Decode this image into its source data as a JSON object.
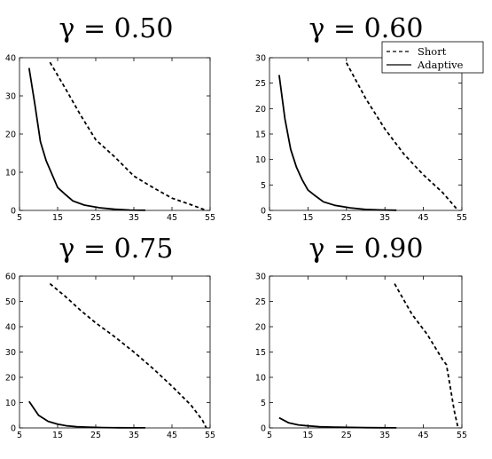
{
  "chart_data": [
    {
      "type": "line",
      "title": "γ = 0.50",
      "xlim": [
        5,
        55
      ],
      "ylim": [
        0,
        40
      ],
      "xticks": [
        5,
        15,
        25,
        35,
        45,
        55
      ],
      "yticks": [
        0,
        10,
        20,
        30,
        40
      ],
      "grid": false,
      "series": [
        {
          "name": "Short",
          "style": "dashed",
          "x": [
            13.0,
            17.0,
            21.0,
            25.0,
            30.0,
            35.0,
            40.0,
            45.0,
            50.0,
            54.0
          ],
          "y": [
            38.8,
            32.0,
            25.0,
            18.5,
            14.0,
            9.0,
            6.0,
            3.2,
            1.5,
            0.0
          ]
        },
        {
          "name": "Adaptive",
          "style": "solid",
          "x": [
            7.5,
            9.0,
            10.5,
            12.0,
            13.5,
            15.0,
            17.0,
            19.0,
            22.0,
            26.0,
            30.0,
            34.0,
            38.0
          ],
          "y": [
            37.3,
            28.0,
            18.0,
            13.0,
            9.5,
            6.0,
            4.2,
            2.5,
            1.4,
            0.7,
            0.3,
            0.1,
            0.05
          ]
        }
      ]
    },
    {
      "type": "line",
      "title": "γ = 0.60",
      "xlim": [
        5,
        55
      ],
      "ylim": [
        0,
        30
      ],
      "xticks": [
        5,
        15,
        25,
        35,
        45,
        55
      ],
      "yticks": [
        0,
        5,
        10,
        15,
        20,
        25,
        30
      ],
      "grid": false,
      "legend": {
        "position": "top-right",
        "entries": [
          "Short",
          "Adaptive"
        ]
      },
      "series": [
        {
          "name": "Short",
          "style": "dashed",
          "x": [
            25.0,
            30.0,
            35.0,
            40.0,
            45.0,
            50.0,
            54.0
          ],
          "y": [
            29.0,
            22.0,
            16.0,
            11.0,
            7.0,
            3.5,
            0.0
          ]
        },
        {
          "name": "Adaptive",
          "style": "solid",
          "x": [
            7.5,
            9.0,
            10.5,
            12.0,
            13.5,
            15.0,
            17.0,
            19.0,
            22.0,
            26.0,
            30.0,
            34.0,
            38.0
          ],
          "y": [
            26.6,
            18.0,
            12.0,
            8.5,
            6.0,
            4.0,
            2.8,
            1.7,
            1.0,
            0.5,
            0.2,
            0.08,
            0.03
          ]
        }
      ]
    },
    {
      "type": "line",
      "title": "γ = 0.75",
      "xlim": [
        5,
        55
      ],
      "ylim": [
        0,
        60
      ],
      "xticks": [
        5,
        15,
        25,
        35,
        45,
        55
      ],
      "yticks": [
        0,
        10,
        20,
        30,
        40,
        50,
        60
      ],
      "grid": false,
      "series": [
        {
          "name": "Short",
          "style": "dashed",
          "x": [
            13.0,
            17.0,
            21.0,
            25.0,
            30.0,
            35.0,
            40.0,
            45.0,
            50.0,
            53.0,
            54.0
          ],
          "y": [
            57.0,
            52.0,
            46.5,
            41.5,
            36.0,
            30.0,
            23.5,
            16.5,
            9.0,
            3.0,
            0.0
          ]
        },
        {
          "name": "Adaptive",
          "style": "solid",
          "x": [
            7.5,
            10.0,
            12.5,
            15.0,
            17.5,
            20.0,
            23.0,
            27.0,
            31.0,
            35.0,
            38.0
          ],
          "y": [
            10.5,
            5.0,
            2.6,
            1.5,
            0.8,
            0.5,
            0.3,
            0.15,
            0.08,
            0.04,
            0.02
          ]
        }
      ]
    },
    {
      "type": "line",
      "title": "γ = 0.90",
      "xlim": [
        5,
        55
      ],
      "ylim": [
        0,
        30
      ],
      "xticks": [
        5,
        15,
        25,
        35,
        45,
        55
      ],
      "yticks": [
        0,
        5,
        10,
        15,
        20,
        25,
        30
      ],
      "grid": false,
      "series": [
        {
          "name": "Short",
          "style": "dashed",
          "x": [
            37.5,
            42.0,
            46.0,
            50.0,
            51.0,
            52.0,
            53.0,
            54.0
          ],
          "y": [
            28.5,
            22.5,
            18.5,
            13.5,
            12.5,
            8.0,
            3.5,
            0.0
          ]
        },
        {
          "name": "Adaptive",
          "style": "solid",
          "x": [
            7.5,
            10.0,
            12.5,
            15.0,
            18.0,
            22.0,
            26.0,
            30.0,
            34.0,
            38.0
          ],
          "y": [
            2.0,
            1.0,
            0.6,
            0.4,
            0.25,
            0.15,
            0.1,
            0.06,
            0.03,
            0.02
          ]
        }
      ]
    }
  ]
}
